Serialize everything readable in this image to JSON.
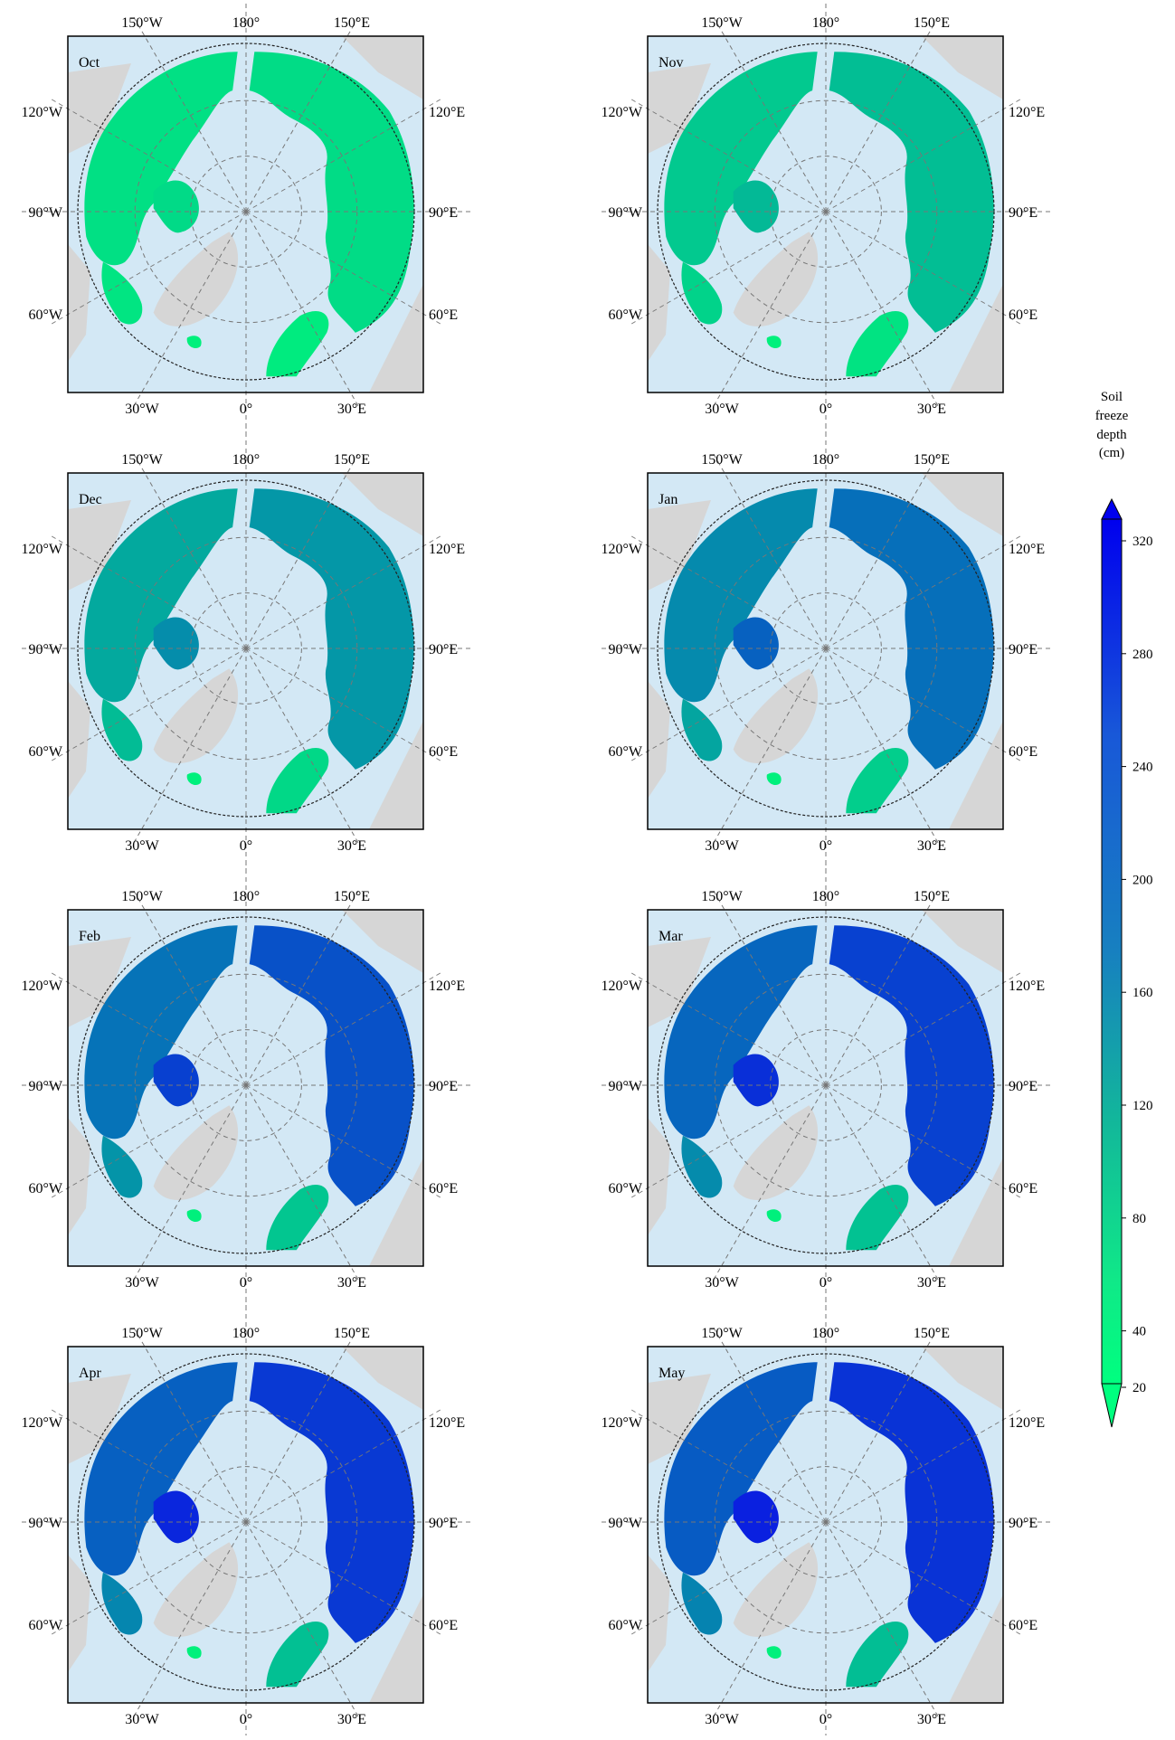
{
  "figure": {
    "panels": [
      {
        "month": "Oct",
        "intensity": 0.1
      },
      {
        "month": "Nov",
        "intensity": 0.25
      },
      {
        "month": "Dec",
        "intensity": 0.45
      },
      {
        "month": "Jan",
        "intensity": 0.65
      },
      {
        "month": "Feb",
        "intensity": 0.8
      },
      {
        "month": "Mar",
        "intensity": 0.88
      },
      {
        "month": "Apr",
        "intensity": 0.92
      },
      {
        "month": "May",
        "intensity": 0.95
      }
    ],
    "graticule_labels": {
      "top": [
        "150°W",
        "180°",
        "150°E"
      ],
      "bottom": [
        "30°W",
        "0°",
        "30°E"
      ],
      "left": [
        "120°W",
        "90°W",
        "60°W"
      ],
      "right": [
        "120°E",
        "90°E",
        "60°E"
      ]
    },
    "colorbar": {
      "title_lines": [
        "Soil",
        "freeze",
        "depth",
        "(cm)"
      ],
      "ticks": [
        "320",
        "280",
        "240",
        "200",
        "160",
        "120",
        "80",
        "40",
        "20"
      ],
      "min": 20,
      "max": 320,
      "colors": [
        "#00ff7f",
        "#0000ff"
      ]
    },
    "colors": {
      "ocean": "#d3e8f5",
      "land_other": "#d6d6d6",
      "frozen_low": "#00f07c",
      "frozen_high": "#0a1fe0"
    }
  }
}
